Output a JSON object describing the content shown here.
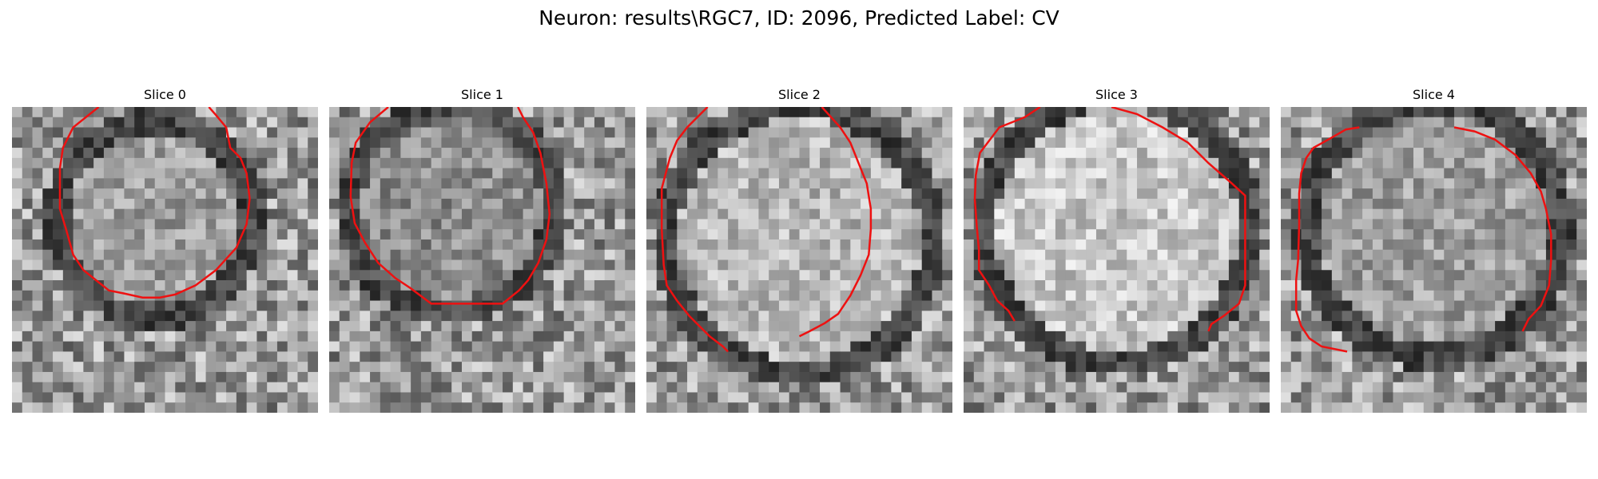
{
  "figure": {
    "title": "Neuron: results\\RGC7, ID: 2096, Predicted Label: CV"
  },
  "colors": {
    "contour": "#ee1111",
    "background": "#ffffff"
  },
  "image": {
    "grid_size": 30,
    "colormap": "grayscale"
  },
  "slices": [
    {
      "label": "Slice 0"
    },
    {
      "label": "Slice 1"
    },
    {
      "label": "Slice 2"
    },
    {
      "label": "Slice 3"
    },
    {
      "label": "Slice 4"
    }
  ]
}
